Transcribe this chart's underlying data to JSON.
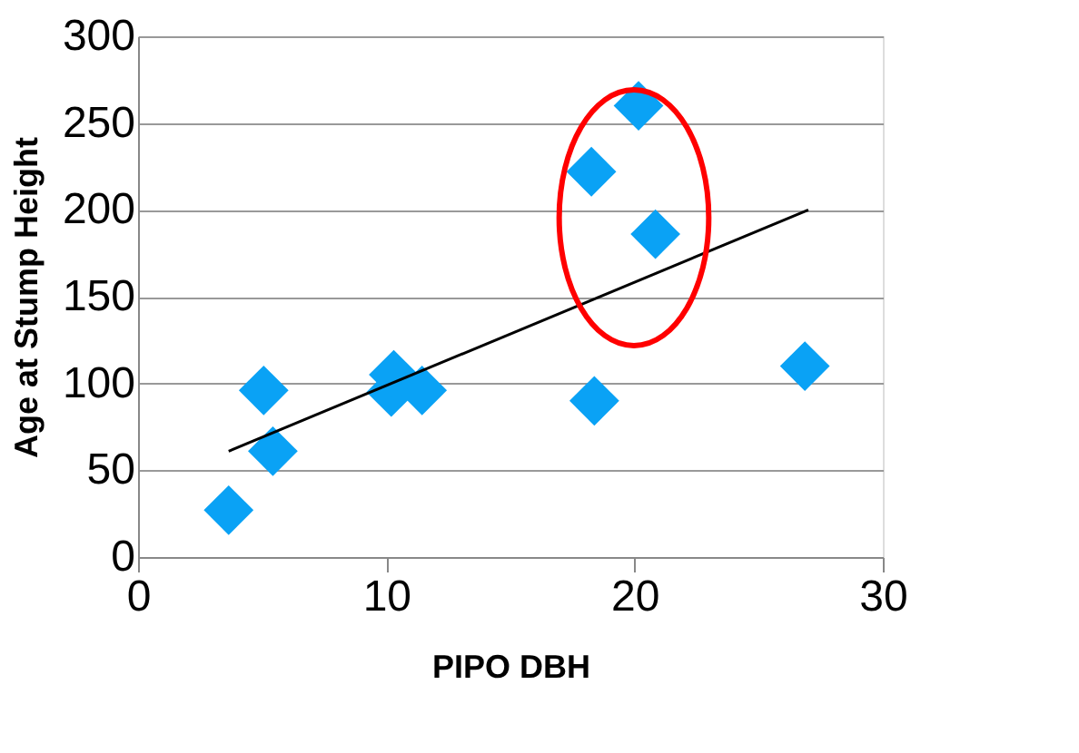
{
  "chart_data": {
    "type": "scatter",
    "xlabel": "PIPO DBH",
    "ylabel": "Age at Stump Height",
    "xlim": [
      0,
      30
    ],
    "xticks": [
      0,
      10,
      20,
      30
    ],
    "ylim": [
      0,
      300
    ],
    "yticks": [
      0,
      50,
      100,
      150,
      200,
      250,
      300
    ],
    "grid": "y",
    "marker": "diamond",
    "series": [
      {
        "color": "#0aa2f5",
        "x": [
          3.65,
          5.06,
          5.43,
          10.2,
          10.3,
          11.44,
          18.26,
          20.16,
          20.84,
          18.38,
          26.86
        ],
        "values": [
          27,
          96,
          61,
          95,
          105,
          96,
          222,
          260,
          186,
          90,
          110
        ]
      },
      {
        "type": "line",
        "color": "#000000",
        "x": [
          3.65,
          27
        ],
        "values": [
          61,
          200
        ],
        "marker": "none",
        "line_style": "solid"
      }
    ]
  }
}
